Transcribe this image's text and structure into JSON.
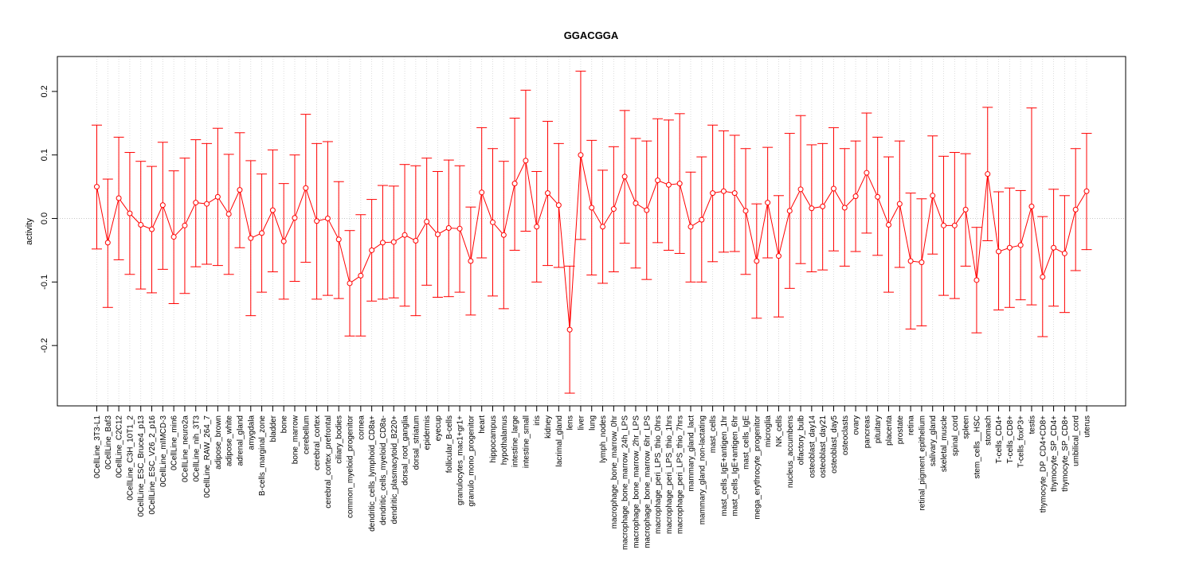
{
  "chart_data": {
    "type": "line",
    "title": "GGACGGA",
    "xlabel": "",
    "ylabel": "activity",
    "ylim": [
      -0.295,
      0.255
    ],
    "yticks": [
      -0.2,
      -0.1,
      0.0,
      0.1,
      0.2
    ],
    "ytick_labels": [
      "-0.2",
      "-0.1",
      "0.0",
      "0.1",
      "0.2"
    ],
    "reference_line": 0,
    "grid": "vertical dotted lines at each category",
    "color": "#ff0000",
    "categories": [
      "0CellLine_3T3-L1",
      "0CellLine_Baf3",
      "0CellLine_C2C12",
      "0CellLine_C3H_10T1_2",
      "0CellLine_ESC_Bruce4_p13",
      "0CellLine_ESC_V26_2_p16",
      "0CellLine_mIMCD-3",
      "0CellLine_min6",
      "0CellLine_neuro2a",
      "0CellLine_nih_3T3",
      "0CellLine_RAW_264_7",
      "adipose_brown",
      "adipose_white",
      "adrenal_gland",
      "amygdala",
      "B-cells_marginal_zone",
      "bladder",
      "bone",
      "bone_marrow",
      "cerebellum",
      "cerebral_cortex",
      "cerebral_cortex_prefrontal",
      "ciliary_bodies",
      "common_myeloid_progenitor",
      "cornea",
      "dendritic_cells_lymphoid_CD8a+",
      "dendritic_cells_myeloid_CD8a-",
      "dendritic_plasmacytoid_B220+",
      "dorsal_root_ganglia",
      "dorsal_striatum",
      "epidermis",
      "eyecup",
      "follicular_B-cells",
      "granulocytes_mac1+gr1+",
      "granulo_mono_progenitor",
      "heart",
      "hippocampus",
      "hypothalamus",
      "intestine_large",
      "intestine_small",
      "iris",
      "kidney",
      "lacrimal_gland",
      "lens",
      "liver",
      "lung",
      "lymph_nodes",
      "macrophage_bone_marrow_0hr",
      "macrophage_bone_marrow_24h_LPS",
      "macrophage_bone_marrow_2hr_LPS",
      "macrophage_bone_marrow_6hr_LPS",
      "macrophage_peri_LPS_thio_0hrs",
      "macrophage_peri_LPS_thio_1hrs",
      "macrophage_peri_LPS_thio_7hrs",
      "mammary_gland_lact",
      "mammary_gland_non-lactating",
      "mast_cells",
      "mast_cells_IgE+antigen_1hr",
      "mast_cells_IgE+antigen_6hr",
      "mast_cells_IgE",
      "mega_erythrocyte_progenitor",
      "microglia",
      "NK_cells",
      "nucleus_accumbens",
      "olfactory_bulb",
      "osteoblast_day14",
      "osteoblast_day21",
      "osteoblast_day5",
      "osteoclasts",
      "ovary",
      "pancreas",
      "pituitary",
      "placenta",
      "prostate",
      "retina",
      "retinal_pigment_epithelium",
      "salivary_gland",
      "skeletal_muscle",
      "spinal_cord",
      "spleen",
      "stem_cells__HSC",
      "stomach",
      "T-cells_CD4+",
      "T-cells_CD8+",
      "T-cells_foxP3+",
      "testis",
      "thymocyte_DP_CD4+CD8+",
      "thymocyte_SP_CD4+",
      "thymocyte_SP_CD8+",
      "umbilical_cord",
      "uterus"
    ],
    "series": [
      {
        "values": [
          0.05,
          -0.038,
          0.032,
          0.008,
          -0.01,
          -0.017,
          0.021,
          -0.029,
          -0.011,
          0.025,
          0.023,
          0.034,
          0.007,
          0.045,
          -0.031,
          -0.023,
          0.013,
          -0.036,
          0.001,
          0.048,
          -0.004,
          0.0,
          -0.033,
          -0.102,
          -0.09,
          -0.05,
          -0.038,
          -0.037,
          -0.026,
          -0.035,
          -0.005,
          -0.025,
          -0.015,
          -0.016,
          -0.067,
          0.041,
          -0.006,
          -0.026,
          0.055,
          0.091,
          -0.013,
          0.04,
          0.021,
          -0.175,
          0.1,
          0.017,
          -0.013,
          0.015,
          0.066,
          0.024,
          0.013,
          0.06,
          0.053,
          0.055,
          -0.013,
          -0.002,
          0.04,
          0.043,
          0.04,
          0.012,
          -0.067,
          0.025,
          -0.059,
          0.012,
          0.046,
          0.016,
          0.019,
          0.047,
          0.017,
          0.035,
          0.072,
          0.034,
          -0.01,
          0.023,
          -0.067,
          -0.069,
          0.036,
          -0.011,
          -0.011,
          0.014,
          -0.097,
          0.07,
          -0.052,
          -0.046,
          -0.042,
          0.019,
          -0.092,
          -0.046,
          -0.055,
          0.014,
          0.043
        ],
        "lower": [
          -0.048,
          -0.14,
          -0.065,
          -0.088,
          -0.111,
          -0.117,
          -0.08,
          -0.134,
          -0.118,
          -0.076,
          -0.072,
          -0.074,
          -0.088,
          -0.046,
          -0.153,
          -0.116,
          -0.084,
          -0.127,
          -0.099,
          -0.069,
          -0.127,
          -0.121,
          -0.126,
          -0.185,
          -0.185,
          -0.13,
          -0.127,
          -0.125,
          -0.138,
          -0.153,
          -0.105,
          -0.124,
          -0.123,
          -0.116,
          -0.152,
          -0.062,
          -0.122,
          -0.142,
          -0.05,
          -0.02,
          -0.1,
          -0.074,
          -0.077,
          -0.275,
          -0.033,
          -0.089,
          -0.102,
          -0.084,
          -0.039,
          -0.078,
          -0.096,
          -0.038,
          -0.05,
          -0.055,
          -0.1,
          -0.1,
          -0.068,
          -0.053,
          -0.052,
          -0.088,
          -0.157,
          -0.062,
          -0.155,
          -0.11,
          -0.071,
          -0.084,
          -0.081,
          -0.051,
          -0.075,
          -0.052,
          -0.023,
          -0.058,
          -0.116,
          -0.077,
          -0.174,
          -0.169,
          -0.056,
          -0.121,
          -0.126,
          -0.075,
          -0.18,
          -0.035,
          -0.144,
          -0.14,
          -0.128,
          -0.136,
          -0.186,
          -0.138,
          -0.148,
          -0.082,
          -0.049
        ],
        "upper": [
          0.147,
          0.062,
          0.128,
          0.104,
          0.09,
          0.082,
          0.12,
          0.075,
          0.095,
          0.124,
          0.118,
          0.142,
          0.101,
          0.135,
          0.091,
          0.07,
          0.108,
          0.055,
          0.1,
          0.164,
          0.118,
          0.121,
          0.058,
          -0.019,
          0.006,
          0.03,
          0.052,
          0.051,
          0.085,
          0.083,
          0.095,
          0.074,
          0.092,
          0.083,
          0.018,
          0.143,
          0.11,
          0.09,
          0.158,
          0.202,
          0.074,
          0.153,
          0.118,
          -0.075,
          0.232,
          0.123,
          0.076,
          0.113,
          0.17,
          0.126,
          0.122,
          0.157,
          0.155,
          0.165,
          0.073,
          0.097,
          0.147,
          0.138,
          0.131,
          0.11,
          0.023,
          0.112,
          0.036,
          0.134,
          0.162,
          0.116,
          0.118,
          0.143,
          0.11,
          0.122,
          0.166,
          0.128,
          0.097,
          0.122,
          0.04,
          0.031,
          0.13,
          0.098,
          0.104,
          0.102,
          -0.014,
          0.175,
          0.042,
          0.048,
          0.044,
          0.174,
          0.003,
          0.046,
          0.036,
          0.11,
          0.134
        ]
      }
    ]
  }
}
